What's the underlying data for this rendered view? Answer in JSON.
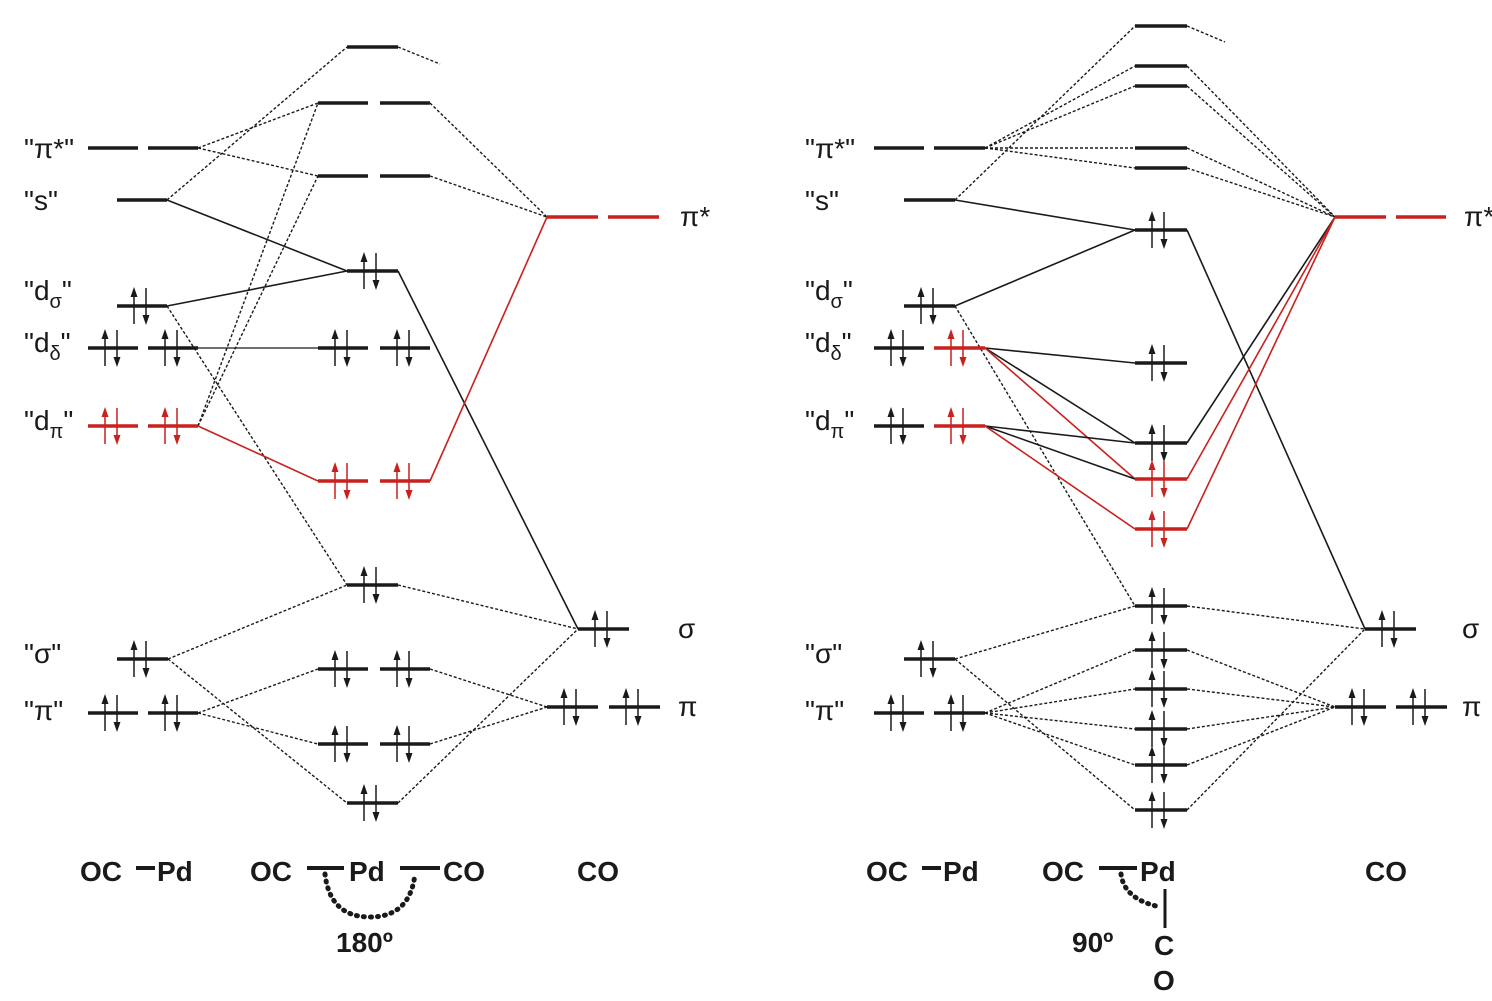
{
  "colors": {
    "ink": "#1a1a1a",
    "highlight": "#c8211e"
  },
  "left_diagram": {
    "fragment_labels": {
      "pi_star": "\"π*\"",
      "s": "\"s\"",
      "d_sigma": {
        "base": "\"d",
        "sub": "σ",
        "end": "\""
      },
      "d_delta": {
        "base": "\"d",
        "sub": "δ",
        "end": "\""
      },
      "d_pi": {
        "base": "\"d",
        "sub": "π",
        "end": "\""
      },
      "sigma": "\"σ\"",
      "pi": "\"π\""
    },
    "co_labels": {
      "pi_star": "π*",
      "sigma": "σ",
      "pi": "π"
    },
    "molecules": {
      "fragment": {
        "left": "OC",
        "right": "Pd"
      },
      "complex": {
        "left": "OC",
        "center": "Pd",
        "right": "CO"
      },
      "ligand": "CO",
      "angle": "180º"
    }
  },
  "right_diagram": {
    "fragment_labels": {
      "pi_star": "\"π*\"",
      "s": "\"s\"",
      "d_sigma": {
        "base": "\"d",
        "sub": "σ",
        "end": "\""
      },
      "d_delta": {
        "base": "\"d",
        "sub": "δ",
        "end": "\""
      },
      "d_pi": {
        "base": "\"d",
        "sub": "π",
        "end": "\""
      },
      "sigma": "\"σ\"",
      "pi": "\"π\""
    },
    "co_labels": {
      "pi_star": "π*",
      "sigma": "σ",
      "pi": "π"
    },
    "molecules": {
      "fragment": {
        "left": "OC",
        "right": "Pd"
      },
      "complex": {
        "left": "OC",
        "center": "Pd",
        "bottom_c": "C",
        "bottom_o": "O"
      },
      "ligand": "CO",
      "angle": "90º"
    }
  }
}
